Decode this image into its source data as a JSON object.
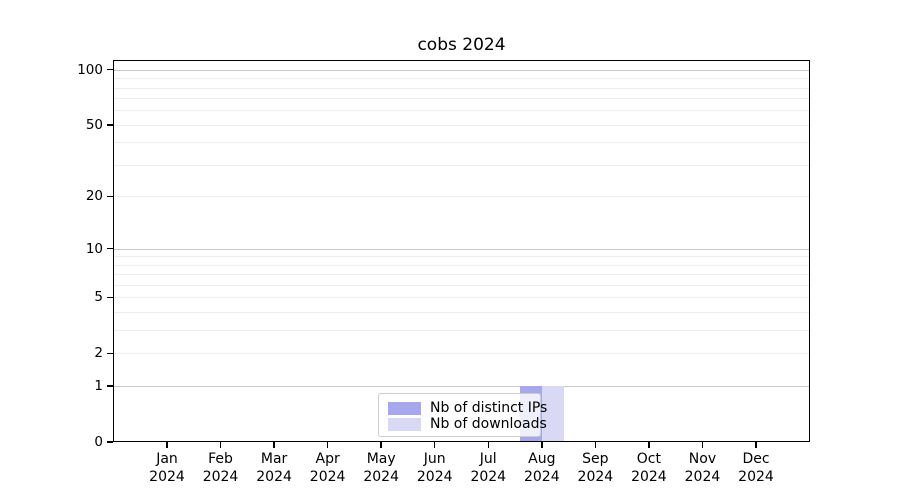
{
  "figure": {
    "background": "#ffffff"
  },
  "chart_data": {
    "type": "bar",
    "title": "cobs 2024",
    "categories": [
      "Jan 2024",
      "Feb 2024",
      "Mar 2024",
      "Apr 2024",
      "May 2024",
      "Jun 2024",
      "Jul 2024",
      "Aug 2024",
      "Sep 2024",
      "Oct 2024",
      "Nov 2024",
      "Dec 2024"
    ],
    "x_ticks": [
      {
        "line1": "Jan",
        "line2": "2024"
      },
      {
        "line1": "Feb",
        "line2": "2024"
      },
      {
        "line1": "Mar",
        "line2": "2024"
      },
      {
        "line1": "Apr",
        "line2": "2024"
      },
      {
        "line1": "May",
        "line2": "2024"
      },
      {
        "line1": "Jun",
        "line2": "2024"
      },
      {
        "line1": "Jul",
        "line2": "2024"
      },
      {
        "line1": "Aug",
        "line2": "2024"
      },
      {
        "line1": "Sep",
        "line2": "2024"
      },
      {
        "line1": "Oct",
        "line2": "2024"
      },
      {
        "line1": "Nov",
        "line2": "2024"
      },
      {
        "line1": "Dec",
        "line2": "2024"
      }
    ],
    "series": [
      {
        "name": "Nb of distinct IPs",
        "color": "#a7a7ed",
        "values": [
          0,
          0,
          0,
          0,
          0,
          0,
          0,
          1,
          0,
          0,
          0,
          0
        ]
      },
      {
        "name": "Nb of downloads",
        "color": "#d9d9f6",
        "values": [
          0,
          0,
          0,
          0,
          0,
          0,
          0,
          1,
          0,
          0,
          0,
          0
        ]
      }
    ],
    "xlabel": "",
    "ylabel": "",
    "yscale": "log1p",
    "ylim": [
      0,
      113
    ],
    "y_ticks": [
      0,
      1,
      2,
      5,
      10,
      20,
      50,
      100
    ],
    "grid": true,
    "gridlines": {
      "major": [
        1,
        10,
        100
      ],
      "minor": [
        2,
        3,
        4,
        5,
        6,
        7,
        8,
        9,
        20,
        30,
        40,
        50,
        60,
        70,
        80,
        90
      ]
    },
    "legend_position": "lower center",
    "colors": {
      "major_grid": "#c9c9c9",
      "minor_grid": "#ededed",
      "axis": "#000000",
      "legend_border": "#cccccc"
    }
  }
}
